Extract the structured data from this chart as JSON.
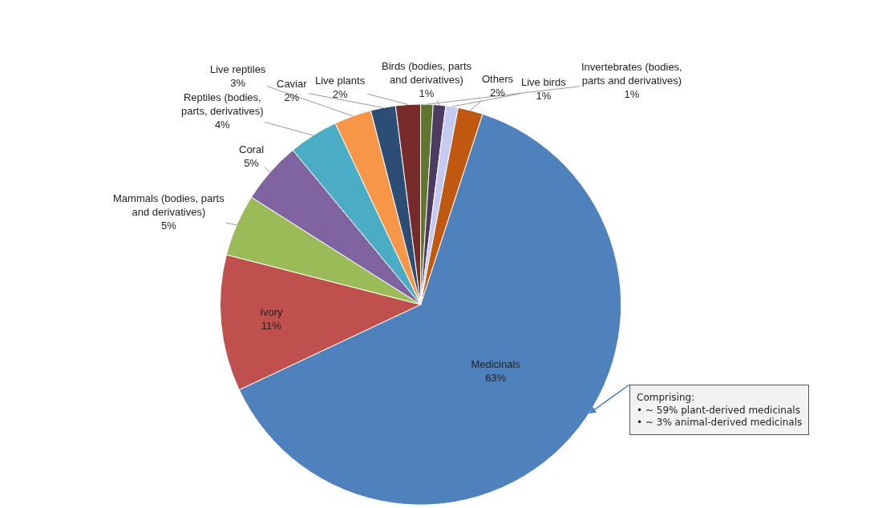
{
  "chart_data": {
    "type": "pie",
    "categories": [
      "Medicinals",
      "Ivory",
      "Mammals (bodies, parts and derivatives)",
      "Coral",
      "Reptiles (bodies, parts, derivatives)",
      "Live reptiles",
      "Caviar",
      "Live plants",
      "Invertebrates (bodies, parts and derivatives)",
      "Birds (bodies, parts and derivatives)",
      "Live birds",
      "Others"
    ],
    "values": [
      63,
      11,
      5,
      5,
      4,
      3,
      2,
      2,
      1,
      1,
      1,
      2
    ],
    "value_labels": [
      "63%",
      "11%",
      "5%",
      "5%",
      "4%",
      "3%",
      "2%",
      "2%",
      "1%",
      "1%",
      "1%",
      "2%"
    ],
    "colors": [
      "#4f81bd",
      "#c0504d",
      "#9bbb59",
      "#8064a2",
      "#4bacc6",
      "#f79646",
      "#2c4d75",
      "#772c2a",
      "#5f7530",
      "#4d3b62",
      "#c5cbf0",
      "#c0580f"
    ],
    "legend": false,
    "annotations": [
      "Comprising:\n• ~ 59% plant-derived medicinals\n• ~ 3% animal-derived medicinals"
    ]
  }
}
